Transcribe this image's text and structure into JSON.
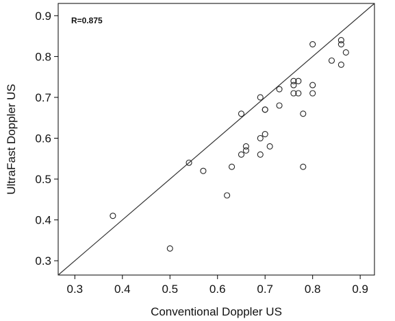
{
  "chart_data": {
    "type": "scatter",
    "xlabel": "Conventional Doppler US",
    "ylabel": "UltraFast Doppler US",
    "annotation": "R=0.875",
    "xlim": [
      0.265,
      0.93
    ],
    "ylim": [
      0.265,
      0.93
    ],
    "x_ticks": [
      "0.3",
      "0.4",
      "0.5",
      "0.6",
      "0.7",
      "0.8",
      "0.9"
    ],
    "y_ticks": [
      "0.3",
      "0.4",
      "0.5",
      "0.6",
      "0.7",
      "0.8",
      "0.9"
    ],
    "grid": false,
    "reference_line": "identity y = x",
    "marker": "open circle",
    "points": [
      {
        "x": 0.38,
        "y": 0.41
      },
      {
        "x": 0.5,
        "y": 0.33
      },
      {
        "x": 0.54,
        "y": 0.54
      },
      {
        "x": 0.57,
        "y": 0.52
      },
      {
        "x": 0.62,
        "y": 0.46
      },
      {
        "x": 0.63,
        "y": 0.53
      },
      {
        "x": 0.65,
        "y": 0.66
      },
      {
        "x": 0.65,
        "y": 0.56
      },
      {
        "x": 0.66,
        "y": 0.58
      },
      {
        "x": 0.66,
        "y": 0.57
      },
      {
        "x": 0.69,
        "y": 0.7
      },
      {
        "x": 0.69,
        "y": 0.6
      },
      {
        "x": 0.69,
        "y": 0.56
      },
      {
        "x": 0.7,
        "y": 0.67
      },
      {
        "x": 0.7,
        "y": 0.67
      },
      {
        "x": 0.7,
        "y": 0.61
      },
      {
        "x": 0.71,
        "y": 0.58
      },
      {
        "x": 0.73,
        "y": 0.72
      },
      {
        "x": 0.73,
        "y": 0.68
      },
      {
        "x": 0.76,
        "y": 0.74
      },
      {
        "x": 0.76,
        "y": 0.73
      },
      {
        "x": 0.76,
        "y": 0.71
      },
      {
        "x": 0.77,
        "y": 0.74
      },
      {
        "x": 0.77,
        "y": 0.71
      },
      {
        "x": 0.78,
        "y": 0.66
      },
      {
        "x": 0.78,
        "y": 0.53
      },
      {
        "x": 0.8,
        "y": 0.83
      },
      {
        "x": 0.8,
        "y": 0.73
      },
      {
        "x": 0.8,
        "y": 0.71
      },
      {
        "x": 0.84,
        "y": 0.79
      },
      {
        "x": 0.86,
        "y": 0.84
      },
      {
        "x": 0.86,
        "y": 0.83
      },
      {
        "x": 0.86,
        "y": 0.78
      },
      {
        "x": 0.87,
        "y": 0.81
      }
    ]
  }
}
